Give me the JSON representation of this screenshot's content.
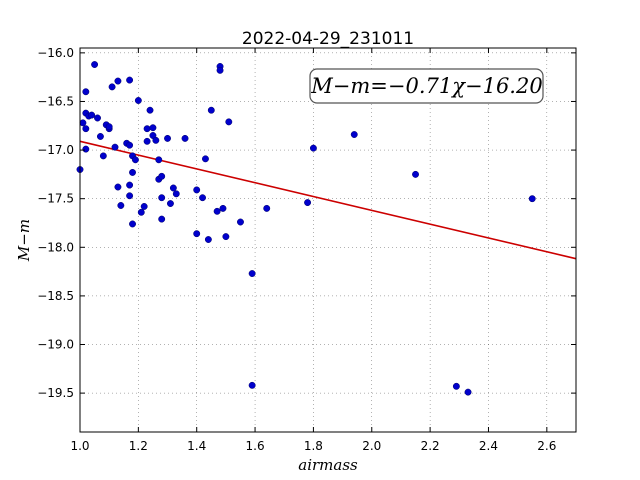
{
  "chart_data": {
    "type": "scatter",
    "title": "2022-04-29_231011",
    "xlabel": "airmass",
    "ylabel": "M−m",
    "xlim": [
      1.0,
      2.7
    ],
    "ylim": [
      -16.0,
      -19.9
    ],
    "ylim_bottom": -19.9,
    "ylim_top": -15.95,
    "x_ticks": [
      1.0,
      1.2,
      1.4,
      1.6,
      1.8,
      2.0,
      2.2,
      2.4,
      2.6
    ],
    "x_tick_labels": [
      "1.0",
      "1.2",
      "1.4",
      "1.6",
      "1.8",
      "2.0",
      "2.2",
      "2.4",
      "2.6"
    ],
    "y_ticks": [
      -16.0,
      -16.5,
      -17.0,
      -17.5,
      -18.0,
      -18.5,
      -19.0,
      -19.5
    ],
    "y_tick_labels": [
      "−16.0",
      "−16.5",
      "−17.0",
      "−17.5",
      "−18.0",
      "−18.5",
      "−19.0",
      "−19.5"
    ],
    "grid": true,
    "annotation": "M−m=−0.71χ−16.20",
    "fit": {
      "slope": -0.71,
      "intercept": -16.2,
      "color": "#cc0000"
    },
    "point_color": "#0000cc",
    "points": [
      {
        "x": 1.0,
        "y": -17.2
      },
      {
        "x": 1.01,
        "y": -16.72
      },
      {
        "x": 1.02,
        "y": -16.62
      },
      {
        "x": 1.02,
        "y": -16.78
      },
      {
        "x": 1.02,
        "y": -16.99
      },
      {
        "x": 1.02,
        "y": -16.4
      },
      {
        "x": 1.03,
        "y": -16.65
      },
      {
        "x": 1.04,
        "y": -16.64
      },
      {
        "x": 1.05,
        "y": -16.12
      },
      {
        "x": 1.06,
        "y": -16.67
      },
      {
        "x": 1.07,
        "y": -16.86
      },
      {
        "x": 1.08,
        "y": -17.06
      },
      {
        "x": 1.09,
        "y": -16.74
      },
      {
        "x": 1.1,
        "y": -16.78
      },
      {
        "x": 1.1,
        "y": -16.76
      },
      {
        "x": 1.11,
        "y": -16.35
      },
      {
        "x": 1.12,
        "y": -16.97
      },
      {
        "x": 1.13,
        "y": -17.38
      },
      {
        "x": 1.13,
        "y": -16.29
      },
      {
        "x": 1.14,
        "y": -17.57
      },
      {
        "x": 1.16,
        "y": -16.93
      },
      {
        "x": 1.17,
        "y": -16.28
      },
      {
        "x": 1.17,
        "y": -16.95
      },
      {
        "x": 1.17,
        "y": -17.36
      },
      {
        "x": 1.17,
        "y": -17.47
      },
      {
        "x": 1.18,
        "y": -17.76
      },
      {
        "x": 1.18,
        "y": -17.23
      },
      {
        "x": 1.18,
        "y": -17.06
      },
      {
        "x": 1.19,
        "y": -17.1
      },
      {
        "x": 1.2,
        "y": -16.49
      },
      {
        "x": 1.21,
        "y": -17.64
      },
      {
        "x": 1.22,
        "y": -17.58
      },
      {
        "x": 1.23,
        "y": -16.91
      },
      {
        "x": 1.23,
        "y": -16.78
      },
      {
        "x": 1.24,
        "y": -16.59
      },
      {
        "x": 1.25,
        "y": -16.77
      },
      {
        "x": 1.25,
        "y": -16.85
      },
      {
        "x": 1.26,
        "y": -16.9
      },
      {
        "x": 1.27,
        "y": -17.1
      },
      {
        "x": 1.27,
        "y": -17.3
      },
      {
        "x": 1.28,
        "y": -17.27
      },
      {
        "x": 1.28,
        "y": -17.49
      },
      {
        "x": 1.28,
        "y": -17.71
      },
      {
        "x": 1.3,
        "y": -16.88
      },
      {
        "x": 1.31,
        "y": -17.55
      },
      {
        "x": 1.32,
        "y": -17.39
      },
      {
        "x": 1.33,
        "y": -17.45
      },
      {
        "x": 1.36,
        "y": -16.88
      },
      {
        "x": 1.4,
        "y": -17.86
      },
      {
        "x": 1.4,
        "y": -17.41
      },
      {
        "x": 1.42,
        "y": -17.49
      },
      {
        "x": 1.43,
        "y": -17.09
      },
      {
        "x": 1.44,
        "y": -17.92
      },
      {
        "x": 1.45,
        "y": -16.59
      },
      {
        "x": 1.47,
        "y": -17.63
      },
      {
        "x": 1.48,
        "y": -16.14
      },
      {
        "x": 1.48,
        "y": -16.18
      },
      {
        "x": 1.49,
        "y": -17.6
      },
      {
        "x": 1.5,
        "y": -17.89
      },
      {
        "x": 1.51,
        "y": -16.71
      },
      {
        "x": 1.55,
        "y": -17.74
      },
      {
        "x": 1.59,
        "y": -18.27
      },
      {
        "x": 1.59,
        "y": -19.42
      },
      {
        "x": 1.64,
        "y": -17.6
      },
      {
        "x": 1.78,
        "y": -17.54
      },
      {
        "x": 1.8,
        "y": -16.98
      },
      {
        "x": 1.94,
        "y": -16.84
      },
      {
        "x": 2.15,
        "y": -17.25
      },
      {
        "x": 2.29,
        "y": -19.43
      },
      {
        "x": 2.33,
        "y": -19.49
      },
      {
        "x": 2.55,
        "y": -17.5
      }
    ]
  }
}
